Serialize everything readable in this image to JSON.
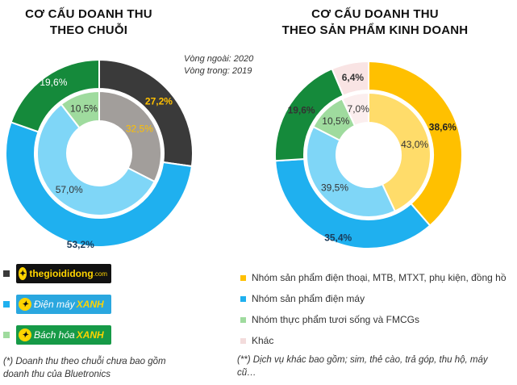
{
  "titles": {
    "left": [
      "CƠ CẤU DOANH THU",
      "THEO CHUỖI"
    ],
    "right": [
      "CƠ CẤU DOANH THU",
      "THEO SẢN PHẨM KINH DOANH"
    ]
  },
  "ring_note": [
    "Vòng ngoài: 2020",
    "Vòng trong: 2019"
  ],
  "chart_data": [
    {
      "type": "pie",
      "title": "CƠ CẤU DOANH THU THEO CHUỖI",
      "categories": [
        "thegioididong.com",
        "Điện máy XANH",
        "Bách hóa XANH"
      ],
      "series": [
        {
          "name": "Vòng ngoài: 2020",
          "values": [
            27.2,
            53.2,
            19.6
          ],
          "labels": [
            "27,2%",
            "53,2%",
            "19,6%"
          ]
        },
        {
          "name": "Vòng trong: 2019",
          "values": [
            32.5,
            57.0,
            10.5
          ],
          "labels": [
            "32,5%",
            "57,0%",
            "10,5%"
          ]
        }
      ],
      "colors": [
        "#3a3a3a",
        "#1fb0ef",
        "#158a3b"
      ],
      "inner_colors": [
        "#a29e9b",
        "#7fd6f7",
        "#9fdb9e"
      ],
      "legend": "bottom-left"
    },
    {
      "type": "pie",
      "title": "CƠ CẤU DOANH THU THEO SẢN PHẨM KINH DOANH",
      "categories": [
        "Nhóm sản phẩm điện thoại, MTB, MTXT, phụ kiện, đồng hồ",
        "Nhóm sản phẩm điện máy",
        "Nhóm thực phẩm tươi sống và FMCGs",
        "Khác"
      ],
      "series": [
        {
          "name": "Vòng ngoài: 2020",
          "values": [
            38.6,
            35.4,
            19.6,
            6.4
          ],
          "labels": [
            "38,6%",
            "35,4%",
            "19,6%",
            "6,4%"
          ]
        },
        {
          "name": "Vòng trong: 2019",
          "values": [
            43.0,
            39.5,
            10.5,
            7.0
          ],
          "labels": [
            "43,0%",
            "39,5%",
            "10,5%",
            "7,0%"
          ]
        }
      ],
      "colors": [
        "#ffc000",
        "#1fb0ef",
        "#158a3b",
        "#f9e4e4"
      ],
      "inner_colors": [
        "#ffdc6a",
        "#7fd6f7",
        "#9fdb9e",
        "#fbeeee"
      ],
      "legend": "bottom"
    }
  ],
  "brands": {
    "tgdd": "thegioididong",
    "tgdd_suffix": ".com",
    "dmx_a": "Điện máy",
    "dmx_b": "XANH",
    "bhx_a": "Bách hóa",
    "bhx_b": "XANH"
  },
  "notes": {
    "left": "(*) Doanh thu theo chuỗi chưa bao gồm doanh thu của Bluetronics",
    "right": "(**) Dịch vụ khác bao gồm; sim, thẻ cào, trả góp, thu hộ, máy cũ…"
  }
}
